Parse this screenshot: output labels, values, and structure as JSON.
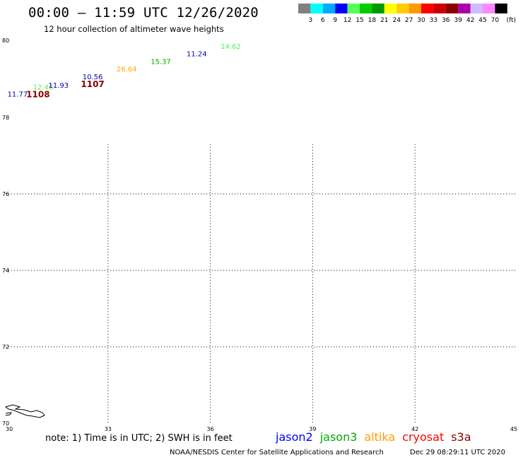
{
  "header": {
    "title": "00:00 – 11:59 UTC 12/26/2020",
    "subtitle": "12 hour collection of altimeter wave heights"
  },
  "legend": {
    "unit": "(ft)",
    "bins": [
      {
        "label": "3",
        "color": "#808080"
      },
      {
        "label": "6",
        "color": "#00ffff"
      },
      {
        "label": "9",
        "color": "#00aaff"
      },
      {
        "label": "12",
        "color": "#0000ff"
      },
      {
        "label": "15",
        "color": "#55ff55"
      },
      {
        "label": "18",
        "color": "#00cc00"
      },
      {
        "label": "21",
        "color": "#009900"
      },
      {
        "label": "24",
        "color": "#ffff00"
      },
      {
        "label": "27",
        "color": "#ffcc00"
      },
      {
        "label": "30",
        "color": "#ff9900"
      },
      {
        "label": "33",
        "color": "#ff0000"
      },
      {
        "label": "36",
        "color": "#cc0000"
      },
      {
        "label": "39",
        "color": "#880000"
      },
      {
        "label": "42",
        "color": "#aa00aa"
      },
      {
        "label": "45",
        "color": "#ccbbff"
      },
      {
        "label": "70",
        "color": "#ff88ff"
      },
      {
        "label": "",
        "color": "#000000"
      }
    ]
  },
  "map": {
    "lon_ticks": [
      "30",
      "33",
      "36",
      "39",
      "42",
      "45"
    ],
    "lat_ticks": [
      "70",
      "72",
      "74",
      "76",
      "78",
      "80"
    ],
    "lon_range": [
      30,
      45
    ],
    "lat_range": [
      70,
      80
    ],
    "observations": [
      {
        "text": "11.77",
        "lon": 30.35,
        "lat": 78.55,
        "color": "#0000aa"
      },
      {
        "text": "1108",
        "lon": 30.95,
        "lat": 78.53,
        "color": "#880000"
      },
      {
        "text": "12.46",
        "lon": 31.1,
        "lat": 78.73,
        "color": "#55ee55"
      },
      {
        "text": "11.93",
        "lon": 31.55,
        "lat": 78.78,
        "color": "#0000aa"
      },
      {
        "text": "1107",
        "lon": 32.55,
        "lat": 78.8,
        "color": "#880000"
      },
      {
        "text": "10.56",
        "lon": 32.55,
        "lat": 79.0,
        "color": "#0000aa"
      },
      {
        "text": "26.64",
        "lon": 33.55,
        "lat": 79.2,
        "color": "#ffaa00"
      },
      {
        "text": "15.37",
        "lon": 34.55,
        "lat": 79.4,
        "color": "#00aa00"
      },
      {
        "text": "11.24",
        "lon": 35.6,
        "lat": 79.6,
        "color": "#0000cc"
      },
      {
        "text": "14.62",
        "lon": 36.6,
        "lat": 79.8,
        "color": "#55ee55"
      }
    ]
  },
  "footer": {
    "note": "note: 1) Time is in UTC; 2) SWH is in feet",
    "satellites": [
      {
        "name": "jason2",
        "color": "#0000ff"
      },
      {
        "name": "jason3",
        "color": "#00aa00"
      },
      {
        "name": "altika",
        "color": "#ff9900"
      },
      {
        "name": "cryosat",
        "color": "#ff0000"
      },
      {
        "name": "s3a",
        "color": "#880000"
      }
    ],
    "credit": "NOAA/NESDIS Center for Satellite Applications and Research",
    "timestamp": "Dec 29 08:29:11 UTC 2020"
  }
}
